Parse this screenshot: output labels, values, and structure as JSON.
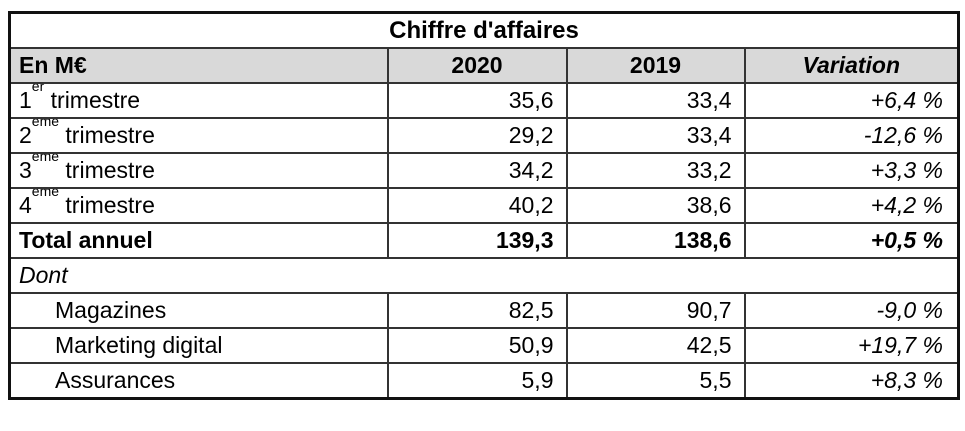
{
  "title": "Chiffre d'affaires",
  "colors": {
    "header_bg": "#d9d9d9",
    "border": "#333333",
    "outer_border": "#111111",
    "text": "#000000",
    "page_bg": "#ffffff"
  },
  "columns": {
    "label": "En M€",
    "y2020": "2020",
    "y2019": "2019",
    "variation": "Variation"
  },
  "quarter_rows": [
    {
      "num": "1",
      "sup": "er",
      "rest": " trimestre",
      "y2020": "35,6",
      "y2019": "33,4",
      "variation": "+6,4 %"
    },
    {
      "num": "2",
      "sup": "ème",
      "rest": " trimestre",
      "y2020": "29,2",
      "y2019": "33,4",
      "variation": "-12,6 %"
    },
    {
      "num": "3",
      "sup": "ème",
      "rest": " trimestre",
      "y2020": "34,2",
      "y2019": "33,2",
      "variation": "+3,3 %"
    },
    {
      "num": "4",
      "sup": "ème",
      "rest": " trimestre",
      "y2020": "40,2",
      "y2019": "38,6",
      "variation": "+4,2 %"
    }
  ],
  "total_row": {
    "label": "Total annuel",
    "y2020": "139,3",
    "y2019": "138,6",
    "variation": "+0,5 %"
  },
  "dont_row": {
    "label": "Dont"
  },
  "breakdown_rows": [
    {
      "label": "Magazines",
      "y2020": "82,5",
      "y2019": "90,7",
      "variation": "-9,0 %"
    },
    {
      "label": "Marketing digital",
      "y2020": "50,9",
      "y2019": "42,5",
      "variation": "+19,7 %"
    },
    {
      "label": "Assurances",
      "y2020": "5,9",
      "y2019": "5,5",
      "variation": "+8,3 %"
    }
  ]
}
